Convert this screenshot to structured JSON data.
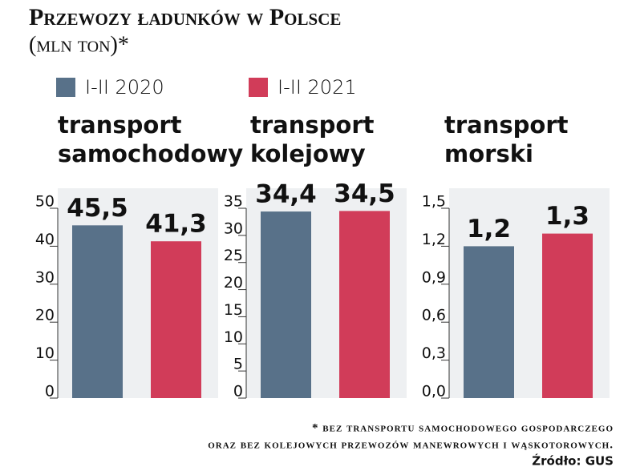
{
  "title": "Przewozy ładunków w Polsce",
  "subtitle": "(mln ton)*",
  "legend": [
    {
      "name": "I-II 2020",
      "color": "#587189"
    },
    {
      "name": "I-II 2021",
      "color": "#d13c59"
    }
  ],
  "note": [
    "* bez transportu samochodowego gospodarczego",
    "oraz bez kolejowych przewozów manewrowych i wąskotorowych."
  ],
  "source": "Źródło: GUS",
  "chart_data": [
    {
      "type": "bar",
      "title": [
        "transport",
        "samochodowy"
      ],
      "series": [
        {
          "values": [
            45.5
          ],
          "value_labels": [
            "45,5"
          ]
        },
        {
          "values": [
            41.3
          ],
          "value_labels": [
            "41,3"
          ]
        }
      ],
      "ylim": [
        0,
        50
      ],
      "yticks": [
        0,
        10,
        20,
        30,
        40,
        50
      ]
    },
    {
      "type": "bar",
      "title": [
        "transport",
        "kolejowy"
      ],
      "series": [
        {
          "values": [
            34.4
          ],
          "value_labels": [
            "34,4"
          ]
        },
        {
          "values": [
            34.5
          ],
          "value_labels": [
            "34,5"
          ]
        }
      ],
      "ylim": [
        0,
        35
      ],
      "yticks": [
        0,
        5,
        10,
        15,
        20,
        25,
        30,
        35
      ]
    },
    {
      "type": "bar",
      "title": [
        "transport",
        "morski"
      ],
      "series": [
        {
          "values": [
            1.2
          ],
          "value_labels": [
            "1,2"
          ]
        },
        {
          "values": [
            1.3
          ],
          "value_labels": [
            "1,3"
          ]
        }
      ],
      "ylim": [
        0,
        1.5
      ],
      "yticks": [
        {
          "value": 0,
          "label": "0,0"
        },
        {
          "value": 0.3,
          "label": "0,3"
        },
        {
          "value": 0.6,
          "label": "0,6"
        },
        {
          "value": 0.9,
          "label": "0,9"
        },
        {
          "value": 1.2,
          "label": "1,2"
        },
        {
          "value": 1.5,
          "label": "1,5"
        }
      ]
    }
  ]
}
